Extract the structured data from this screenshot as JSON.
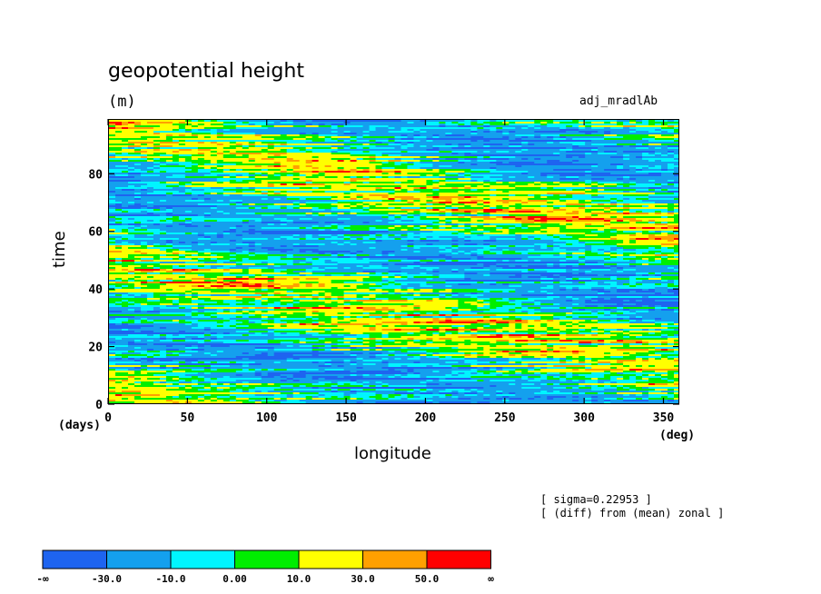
{
  "header": {
    "title": "geopotential height",
    "units": "(m)",
    "experiment": "adj_mradlAb"
  },
  "chart_data": {
    "type": "heatmap",
    "title": "geopotential height",
    "subtitle": "(m)",
    "xlabel": "longitude",
    "ylabel": "time",
    "x_unit": "(deg)",
    "y_unit": "(days)",
    "xlim": [
      0,
      360
    ],
    "ylim": [
      0,
      99
    ],
    "x_ticks": [
      0,
      50,
      100,
      150,
      200,
      250,
      300,
      350
    ],
    "y_ticks": [
      0,
      20,
      40,
      60,
      80
    ],
    "levels": [
      -30.0,
      -10.0,
      0.0,
      10.0,
      30.0,
      50.0
    ],
    "colorbar_labels": [
      "-∞",
      "-30.0",
      "-10.0",
      "0.00",
      "10.0",
      "30.0",
      "50.0",
      "∞"
    ],
    "colors": [
      "#1e64f0",
      "#14a0ee",
      "#00f5ff",
      "#00ee00",
      "#ffff00",
      "#ffa000",
      "#ff0000"
    ],
    "description": "noisy horizontally streaked field of zonal deviations of geopotential height, dominated by cyan/green/blue with yellow bands"
  },
  "notes": {
    "line1": "[ sigma=0.22953 ]",
    "line2": "[ (diff) from (mean) zonal ]"
  }
}
